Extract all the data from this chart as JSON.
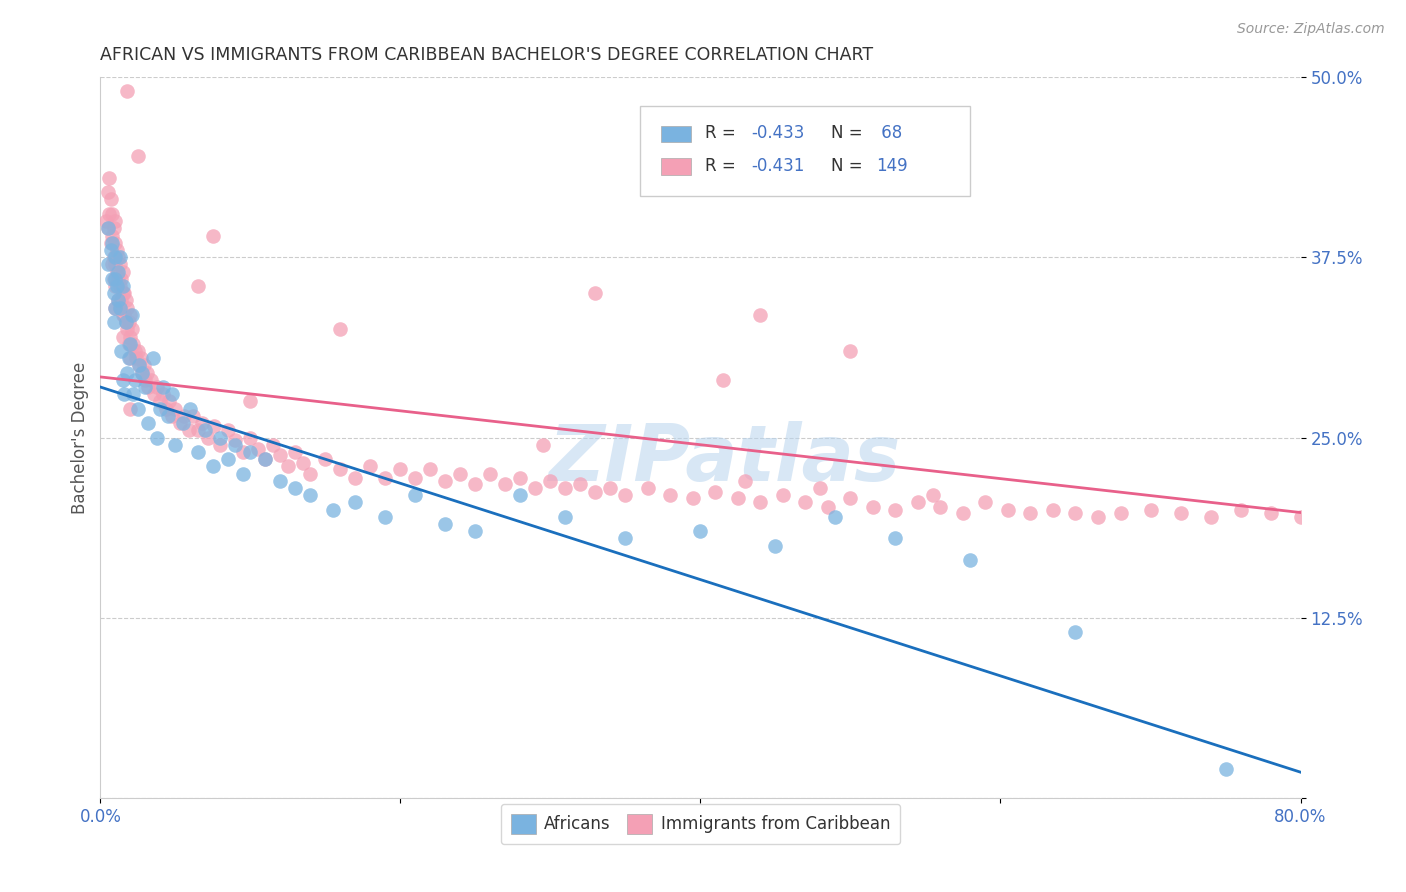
{
  "title": "AFRICAN VS IMMIGRANTS FROM CARIBBEAN BACHELOR'S DEGREE CORRELATION CHART",
  "source": "Source: ZipAtlas.com",
  "ylabel": "Bachelor's Degree",
  "xlim": [
    0.0,
    0.8
  ],
  "ylim": [
    0.0,
    0.5
  ],
  "xtick_pos": [
    0.0,
    0.2,
    0.4,
    0.6,
    0.8
  ],
  "xtick_labels": [
    "0.0%",
    "",
    "",
    "",
    "80.0%"
  ],
  "ytick_pos": [
    0.0,
    0.125,
    0.25,
    0.375,
    0.5
  ],
  "ytick_labels": [
    "",
    "12.5%",
    "25.0%",
    "37.5%",
    "50.0%"
  ],
  "africans_color": "#7ab3e0",
  "caribbean_color": "#f4a0b5",
  "trend_african_color": "#1a6fbd",
  "trend_caribbean_color": "#e8608a",
  "africans_R": "-0.433",
  "africans_N": "68",
  "caribbean_R": "-0.431",
  "caribbean_N": "149",
  "watermark": "ZIPatlas",
  "background_color": "#ffffff",
  "grid_color": "#cccccc",
  "tick_color": "#4472c4",
  "title_color": "#333333",
  "ylabel_color": "#555555",
  "source_color": "#999999",
  "af_trend_x0": 0.0,
  "af_trend_y0": 0.285,
  "af_trend_x1": 0.8,
  "af_trend_y1": 0.018,
  "car_trend_x0": 0.0,
  "car_trend_y0": 0.292,
  "car_trend_x1": 0.8,
  "car_trend_y1": 0.198,
  "legend_R1": "R = ",
  "legend_V1": "-0.433",
  "legend_N1": "N = ",
  "legend_NV1": " 68",
  "legend_R2": "R = ",
  "legend_V2": "-0.431",
  "legend_N2": "N = ",
  "legend_NV2": "149",
  "legend_label1": "Africans",
  "legend_label2": "Immigrants from Caribbean"
}
